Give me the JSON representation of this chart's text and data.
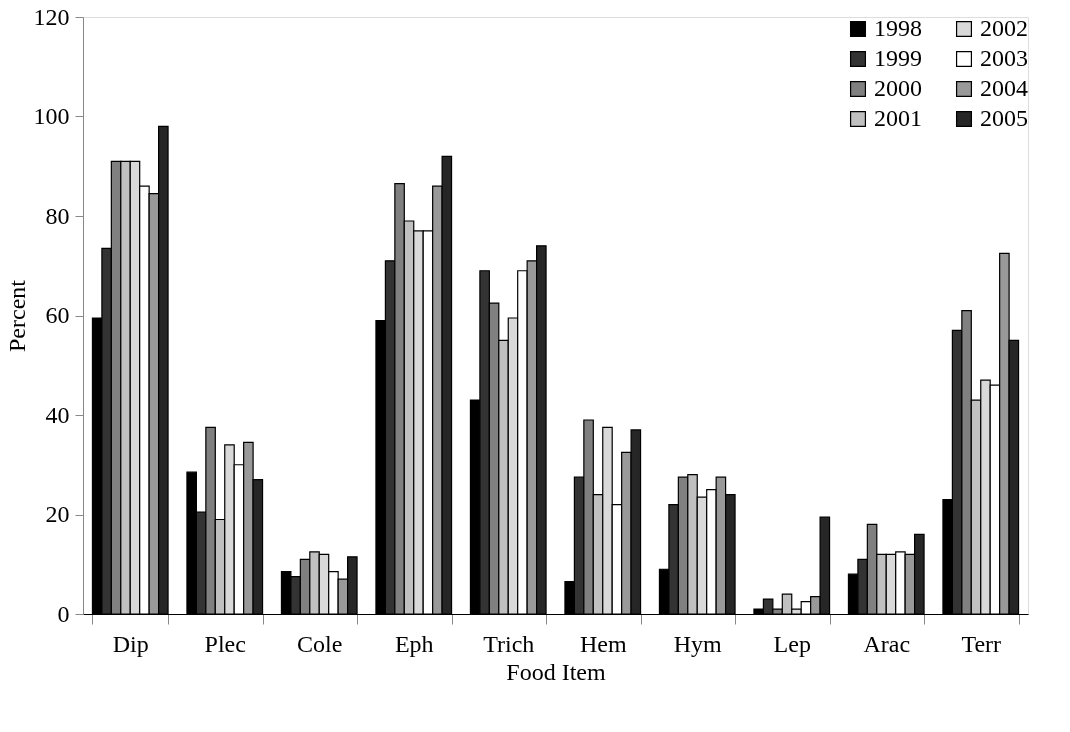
{
  "chart_data": {
    "type": "bar",
    "xlabel": "Food Item",
    "ylabel": "Percent",
    "categories": [
      "Dip",
      "Plec",
      "Cole",
      "Eph",
      "Trich",
      "Hem",
      "Hym",
      "Lep",
      "Arac",
      "Terr"
    ],
    "series": [
      {
        "name": "1998",
        "color": "#000000",
        "values": [
          59.5,
          28.5,
          8.5,
          59,
          43,
          6.5,
          9,
          1,
          8,
          23
        ]
      },
      {
        "name": "1999",
        "color": "#333333",
        "values": [
          73.5,
          20.5,
          7.5,
          71,
          69,
          27.5,
          22,
          3,
          11,
          57
        ]
      },
      {
        "name": "2000",
        "color": "#808080",
        "values": [
          91,
          37.5,
          11,
          86.5,
          62.5,
          39,
          27.5,
          1,
          18,
          61
        ]
      },
      {
        "name": "2001",
        "color": "#c0c0c0",
        "values": [
          91,
          19,
          12.5,
          79,
          55,
          24,
          28,
          4,
          12,
          43
        ]
      },
      {
        "name": "2002",
        "color": "#d9d9d9",
        "values": [
          91,
          34,
          12,
          77,
          59.5,
          37.5,
          23.5,
          1,
          12,
          47
        ]
      },
      {
        "name": "2003",
        "color": "#ffffff",
        "values": [
          86,
          30,
          8.5,
          77,
          69,
          22,
          25,
          2.5,
          12.5,
          46
        ]
      },
      {
        "name": "2004",
        "color": "#999999",
        "values": [
          84.5,
          34.5,
          7,
          86,
          71,
          32.5,
          27.5,
          3.5,
          12,
          72.5
        ]
      },
      {
        "name": "2005",
        "color": "#262626",
        "values": [
          98,
          27,
          11.5,
          92,
          74,
          37,
          24,
          19.5,
          16,
          55
        ]
      }
    ],
    "ylim": [
      0,
      120
    ],
    "yticks": [
      0,
      20,
      40,
      60,
      80,
      100,
      120
    ],
    "grid": false,
    "legend": "top right"
  }
}
